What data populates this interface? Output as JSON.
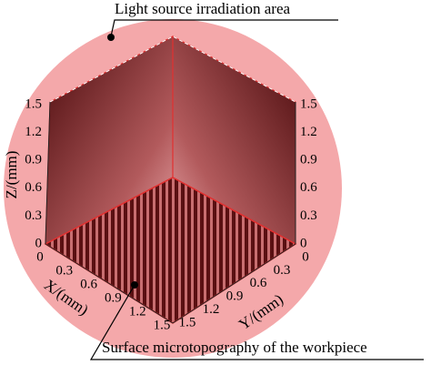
{
  "annotations": {
    "top": "Light source irradiation area",
    "bottom": "Surface microtopography of the workpiece"
  },
  "axes": {
    "z": {
      "label": "Z/(mm)",
      "ticks": [
        "0",
        "0.3",
        "0.6",
        "0.9",
        "1.2",
        "1.5"
      ]
    },
    "x": {
      "label": "X/(mm)",
      "ticks": [
        "0",
        "0.3",
        "0.6",
        "0.9",
        "1.2",
        "1.5"
      ]
    },
    "y": {
      "label": "Y/(mm)",
      "ticks": [
        "0",
        "0.3",
        "0.6",
        "0.9",
        "1.2",
        "1.5"
      ]
    }
  }
}
